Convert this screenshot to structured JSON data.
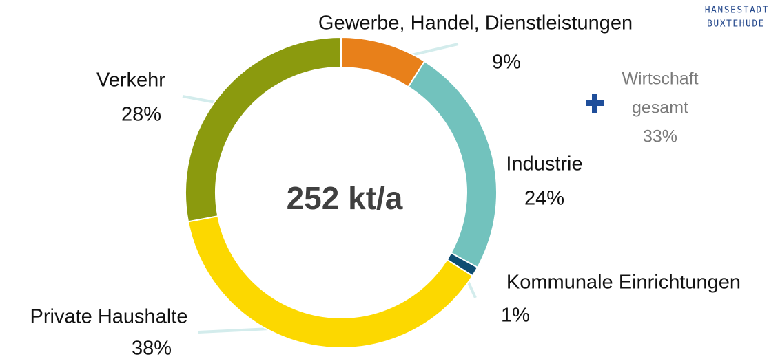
{
  "chart_data": {
    "type": "donut",
    "center_label": "252 kt/a",
    "categories": [
      "Gewerbe, Handel, Dienstleistungen",
      "Industrie",
      "Kommunale Einrichtungen",
      "Private Haushalte",
      "Verkehr"
    ],
    "values": [
      9,
      24,
      1,
      38,
      28
    ],
    "value_labels": [
      "9%",
      "24%",
      "1%",
      "38%",
      "28%"
    ],
    "colors": [
      "#e8801a",
      "#72c2bd",
      "#0e4d72",
      "#fcd800",
      "#8b9a0e"
    ],
    "annotation": [
      "Wirtschaft",
      "gesamt",
      "33%"
    ],
    "logo": [
      "HANSESTADT",
      "BUXTEHUDE"
    ]
  }
}
